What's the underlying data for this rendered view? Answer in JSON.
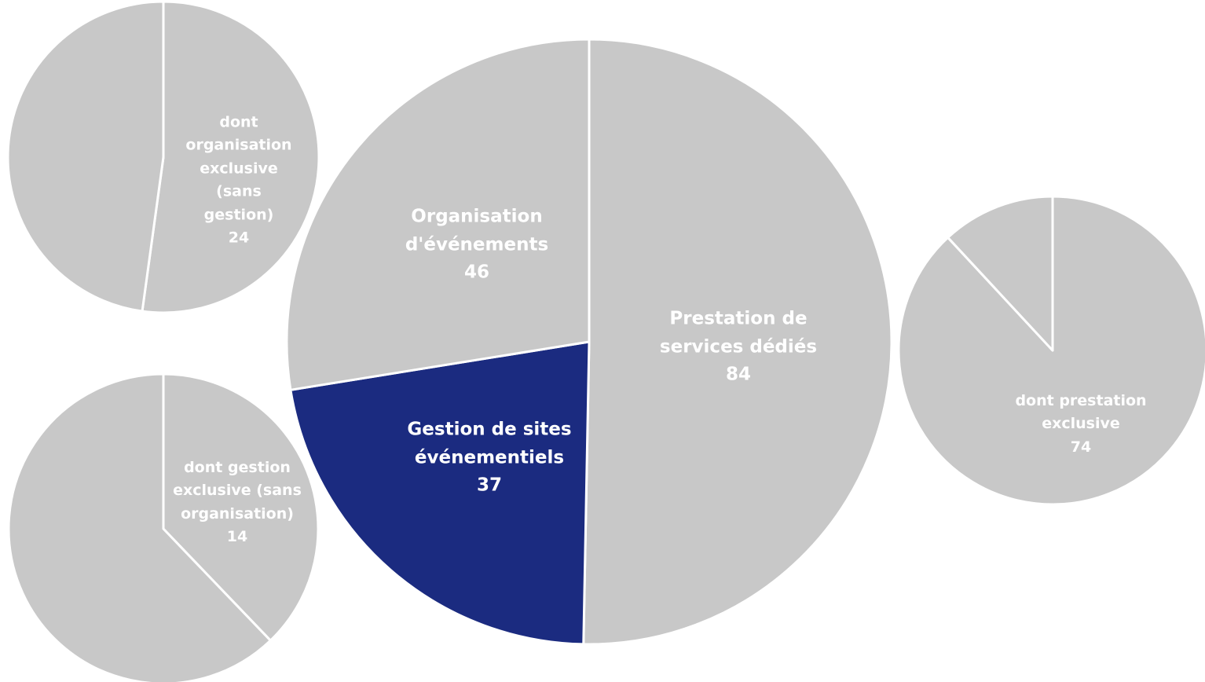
{
  "chart_data": [
    {
      "type": "pie",
      "categories": [
        "Prestation de services dédiés",
        "Gestion de sites événementiels",
        "Organisation d'événements"
      ],
      "values": [
        84,
        37,
        46
      ],
      "colors": [
        "#c8c8c8",
        "#1b2b80",
        "#c8c8c8"
      ]
    },
    {
      "type": "pie",
      "categories": [
        "dont organisation exclusive (sans gestion)",
        null
      ],
      "values": [
        24,
        22
      ],
      "colors": [
        "#c8c8c8",
        "#c8c8c8"
      ]
    },
    {
      "type": "pie",
      "categories": [
        "dont gestion exclusive (sans organisation)",
        null
      ],
      "values": [
        14,
        23
      ],
      "colors": [
        "#c8c8c8",
        "#c8c8c8"
      ]
    },
    {
      "type": "pie",
      "categories": [
        "dont prestation exclusive",
        null
      ],
      "values": [
        74,
        10
      ],
      "colors": [
        "#c8c8c8",
        "#c8c8c8"
      ]
    }
  ]
}
